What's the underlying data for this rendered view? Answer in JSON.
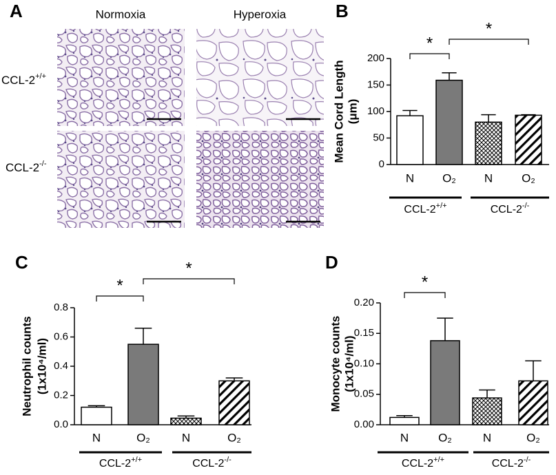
{
  "panel_a": {
    "letter": "A",
    "columns": [
      "Normoxia",
      "Hyperoxia"
    ],
    "rows": [
      {
        "label": "CCL-2",
        "sup": "+/+"
      },
      {
        "label": "CCL-2",
        "sup": "-/-"
      }
    ]
  },
  "chart_data": [
    {
      "type": "bar",
      "panel": "B",
      "ylabel": [
        "Mean Cord Length",
        "(μm)"
      ],
      "categories": [
        "N",
        "O₂",
        "N",
        "O₂"
      ],
      "values": [
        92,
        159,
        80,
        93
      ],
      "errors": [
        10,
        14,
        14,
        1
      ],
      "colors": [
        "#ffffff",
        "#7a7a7a",
        "#ffffff",
        "#ffffff"
      ],
      "patterns": [
        "none",
        "none",
        "crosshatch",
        "diagonal"
      ],
      "groups": [
        {
          "label": "CCL-2",
          "sup": "+/+"
        },
        {
          "label": "CCL-2",
          "sup": "-/-"
        }
      ],
      "significance": [
        {
          "from": 0,
          "to": 1,
          "label": "*"
        },
        {
          "from": 1,
          "to": 3,
          "label": "*"
        }
      ],
      "ylim": [
        0,
        200
      ],
      "yticks": [
        0,
        50,
        100,
        150,
        200
      ]
    },
    {
      "type": "bar",
      "panel": "C",
      "ylabel": [
        "Neutrophil counts",
        "(1x10⁴/ml)"
      ],
      "categories": [
        "N",
        "O₂",
        "N",
        "O₂"
      ],
      "values": [
        0.12,
        0.55,
        0.045,
        0.3
      ],
      "errors": [
        0.01,
        0.11,
        0.015,
        0.02
      ],
      "colors": [
        "#ffffff",
        "#7a7a7a",
        "#ffffff",
        "#ffffff"
      ],
      "patterns": [
        "none",
        "none",
        "crosshatch",
        "diagonal"
      ],
      "groups": [
        {
          "label": "CCL-2",
          "sup": "+/+"
        },
        {
          "label": "CCL-2",
          "sup": "-/-"
        }
      ],
      "significance": [
        {
          "from": 0,
          "to": 1,
          "label": "*"
        },
        {
          "from": 1,
          "to": 3,
          "label": "*"
        }
      ],
      "ylim": [
        0,
        0.8
      ],
      "yticks": [
        {
          "value": 0,
          "label": "0.0"
        },
        0.2,
        0.4,
        0.6,
        0.8
      ]
    },
    {
      "type": "bar",
      "panel": "D",
      "ylabel": [
        "Monocyte counts",
        "(1x10⁴/ml)"
      ],
      "categories": [
        "N",
        "O₂",
        "N",
        "O₂"
      ],
      "values": [
        0.012,
        0.138,
        0.044,
        0.072
      ],
      "errors": [
        0.003,
        0.037,
        0.013,
        0.033
      ],
      "colors": [
        "#ffffff",
        "#7a7a7a",
        "#ffffff",
        "#ffffff"
      ],
      "patterns": [
        "none",
        "none",
        "crosshatch",
        "diagonal"
      ],
      "groups": [
        {
          "label": "CCL-2",
          "sup": "+/+"
        },
        {
          "label": "CCL-2",
          "sup": "-/-"
        }
      ],
      "significance": [
        {
          "from": 0,
          "to": 1,
          "label": "*"
        }
      ],
      "ylim": [
        0,
        0.2
      ],
      "yticks": [
        {
          "value": 0,
          "label": "0.00"
        },
        {
          "value": 0.05,
          "label": "0.05"
        },
        {
          "value": 0.1,
          "label": "0.10"
        },
        {
          "value": 0.15,
          "label": "0.15"
        },
        {
          "value": 0.2,
          "label": "0.20"
        }
      ]
    }
  ]
}
